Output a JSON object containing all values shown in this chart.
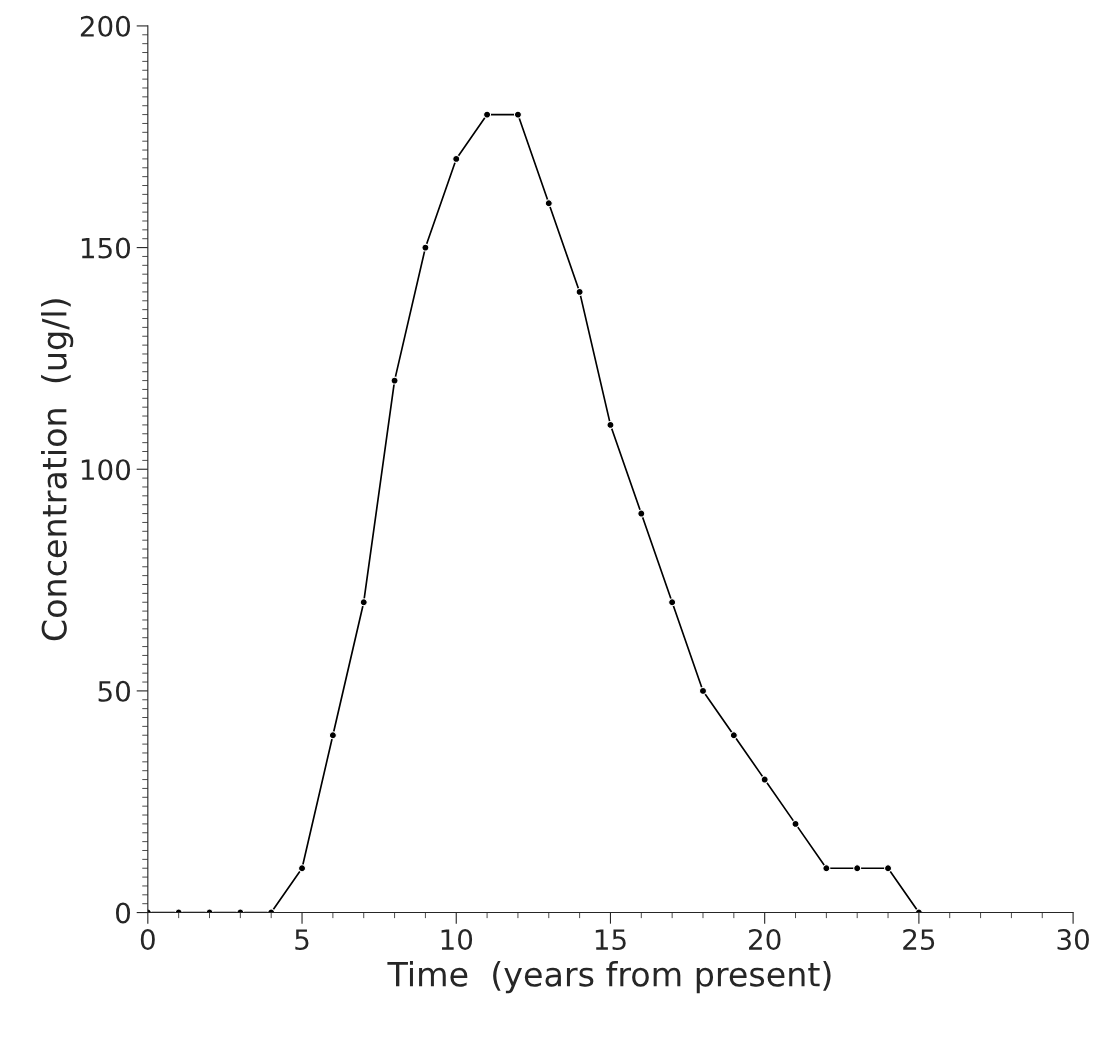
{
  "chart_data": {
    "type": "line",
    "xlabel": "Time  (years from present)",
    "ylabel": "Concentration  (ug/l)",
    "x": [
      0,
      1,
      2,
      3,
      4,
      5,
      6,
      7,
      8,
      9,
      10,
      11,
      12,
      13,
      14,
      15,
      16,
      17,
      18,
      19,
      20,
      21,
      22,
      23,
      24,
      25
    ],
    "series": [
      {
        "color": "#000000",
        "values": [
          0,
          0,
          0,
          0,
          0,
          10,
          40,
          70,
          120,
          150,
          170,
          180,
          180,
          160,
          140,
          110,
          90,
          70,
          50,
          40,
          30,
          20,
          10,
          10,
          10,
          0
        ]
      }
    ],
    "xlim": [
      0,
      30
    ],
    "ylim": [
      0,
      200
    ],
    "xticks": [
      0,
      5,
      10,
      15,
      20,
      25,
      30
    ],
    "yticks": [
      0,
      50,
      100,
      150,
      200
    ],
    "grid": false,
    "legend": false,
    "marker": "circle",
    "line_style": "solid"
  }
}
